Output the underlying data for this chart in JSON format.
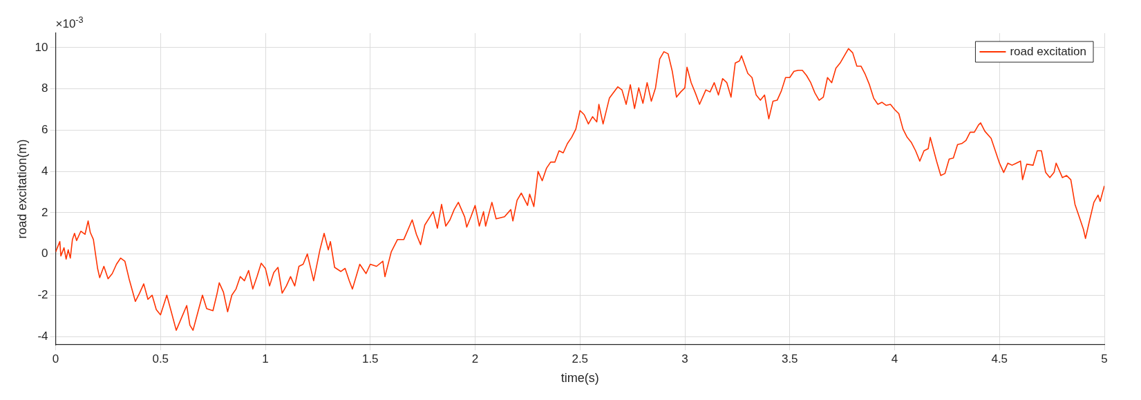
{
  "chart_data": {
    "type": "line",
    "xlabel": "time(s)",
    "ylabel": "road excitation(m)",
    "annotations": [
      "×10$^{-3}$"
    ],
    "xlim": [
      0,
      5
    ],
    "xticks": [
      0,
      0.5,
      1,
      1.5,
      2,
      2.5,
      3,
      3.5,
      4,
      4.5,
      5
    ],
    "ylim": [
      -4.4,
      10.7
    ],
    "yticks": [
      -4,
      -2,
      0,
      2,
      4,
      6,
      8,
      10
    ],
    "grid": true,
    "legend": "top right",
    "marker": "none",
    "line_style": "solid",
    "series": [
      {
        "name": "road excitation",
        "color": "#ff3300",
        "x": [
          0,
          0.01,
          0.02,
          0.025,
          0.04,
          0.05,
          0.06,
          0.07,
          0.08,
          0.09,
          0.1,
          0.12,
          0.14,
          0.155,
          0.165,
          0.18,
          0.2,
          0.21,
          0.23,
          0.25,
          0.27,
          0.29,
          0.31,
          0.33,
          0.35,
          0.38,
          0.4,
          0.42,
          0.44,
          0.46,
          0.48,
          0.5,
          0.53,
          0.55,
          0.575,
          0.6,
          0.625,
          0.64,
          0.655,
          0.68,
          0.7,
          0.72,
          0.75,
          0.77,
          0.78,
          0.8,
          0.82,
          0.84,
          0.86,
          0.88,
          0.9,
          0.92,
          0.94,
          0.96,
          0.98,
          1,
          1.02,
          1.04,
          1.06,
          1.08,
          1.1,
          1.12,
          1.14,
          1.16,
          1.18,
          1.2,
          1.23,
          1.26,
          1.28,
          1.3,
          1.31,
          1.33,
          1.36,
          1.38,
          1.4,
          1.415,
          1.45,
          1.48,
          1.5,
          1.53,
          1.56,
          1.57,
          1.6,
          1.63,
          1.66,
          1.7,
          1.72,
          1.74,
          1.76,
          1.8,
          1.82,
          1.84,
          1.86,
          1.88,
          1.9,
          1.92,
          1.95,
          1.96,
          1.98,
          2,
          2.02,
          2.04,
          2.05,
          2.08,
          2.1,
          2.14,
          2.17,
          2.18,
          2.2,
          2.22,
          2.25,
          2.26,
          2.28,
          2.3,
          2.32,
          2.34,
          2.36,
          2.38,
          2.4,
          2.42,
          2.44,
          2.46,
          2.48,
          2.5,
          2.52,
          2.54,
          2.56,
          2.58,
          2.59,
          2.61,
          2.64,
          2.68,
          2.7,
          2.72,
          2.74,
          2.76,
          2.78,
          2.8,
          2.82,
          2.84,
          2.86,
          2.88,
          2.9,
          2.92,
          2.94,
          2.96,
          2.98,
          3,
          3.01,
          3.03,
          3.05,
          3.07,
          3.1,
          3.12,
          3.14,
          3.16,
          3.18,
          3.2,
          3.22,
          3.24,
          3.26,
          3.27,
          3.3,
          3.32,
          3.34,
          3.36,
          3.38,
          3.4,
          3.42,
          3.44,
          3.46,
          3.48,
          3.5,
          3.52,
          3.54,
          3.56,
          3.58,
          3.6,
          3.62,
          3.64,
          3.66,
          3.68,
          3.7,
          3.72,
          3.74,
          3.76,
          3.78,
          3.8,
          3.82,
          3.84,
          3.86,
          3.88,
          3.9,
          3.92,
          3.94,
          3.96,
          3.98,
          4,
          4.02,
          4.04,
          4.06,
          4.08,
          4.1,
          4.12,
          4.14,
          4.16,
          4.17,
          4.2,
          4.22,
          4.24,
          4.26,
          4.28,
          4.3,
          4.32,
          4.34,
          4.36,
          4.38,
          4.4,
          4.41,
          4.43,
          4.46,
          4.48,
          4.5,
          4.52,
          4.54,
          4.56,
          4.58,
          4.6,
          4.61,
          4.63,
          4.66,
          4.68,
          4.7,
          4.72,
          4.74,
          4.76,
          4.77,
          4.8,
          4.82,
          4.84,
          4.86,
          4.88,
          4.9,
          4.91,
          4.93,
          4.95,
          4.97,
          4.98,
          5
        ],
        "values": [
          0.1,
          0.35,
          0.6,
          -0.1,
          0.3,
          -0.25,
          0.2,
          -0.2,
          0.7,
          1.0,
          0.65,
          1.1,
          0.95,
          1.6,
          1.05,
          0.7,
          -0.7,
          -1.15,
          -0.6,
          -1.2,
          -0.95,
          -0.5,
          -0.2,
          -0.35,
          -1.2,
          -2.3,
          -1.9,
          -1.45,
          -2.2,
          -2.0,
          -2.7,
          -2.95,
          -2.0,
          -2.75,
          -3.7,
          -3.1,
          -2.5,
          -3.45,
          -3.7,
          -2.75,
          -2.0,
          -2.65,
          -2.75,
          -1.9,
          -1.4,
          -1.85,
          -2.8,
          -2.0,
          -1.7,
          -1.1,
          -1.3,
          -0.8,
          -1.7,
          -1.1,
          -0.45,
          -0.7,
          -1.55,
          -0.9,
          -0.65,
          -1.9,
          -1.55,
          -1.1,
          -1.55,
          -0.6,
          -0.5,
          0,
          -1.3,
          0.2,
          1.0,
          0.2,
          0.6,
          -0.65,
          -0.85,
          -0.7,
          -1.3,
          -1.7,
          -0.5,
          -0.95,
          -0.5,
          -0.6,
          -0.35,
          -1.1,
          0.1,
          0.7,
          0.7,
          1.65,
          0.95,
          0.45,
          1.4,
          2.05,
          1.25,
          2.4,
          1.35,
          1.65,
          2.15,
          2.5,
          1.8,
          1.3,
          1.8,
          2.35,
          1.35,
          2.05,
          1.35,
          2.5,
          1.7,
          1.8,
          2.15,
          1.6,
          2.6,
          2.95,
          2.35,
          2.9,
          2.3,
          4.0,
          3.55,
          4.15,
          4.45,
          4.45,
          5.0,
          4.9,
          5.35,
          5.65,
          6.05,
          6.95,
          6.75,
          6.3,
          6.65,
          6.4,
          7.25,
          6.3,
          7.55,
          8.1,
          7.95,
          7.25,
          8.2,
          7.05,
          8.05,
          7.3,
          8.3,
          7.4,
          8.05,
          9.45,
          9.8,
          9.7,
          8.85,
          7.6,
          7.85,
          8.05,
          9.05,
          8.3,
          7.8,
          7.25,
          7.95,
          7.85,
          8.3,
          7.7,
          8.5,
          8.3,
          7.6,
          9.25,
          9.35,
          9.6,
          8.75,
          8.55,
          7.7,
          7.45,
          7.7,
          6.55,
          7.4,
          7.45,
          7.9,
          8.55,
          8.55,
          8.85,
          8.9,
          8.9,
          8.65,
          8.3,
          7.8,
          7.45,
          7.6,
          8.55,
          8.3,
          9.0,
          9.25,
          9.6,
          9.95,
          9.75,
          9.1,
          9.1,
          8.7,
          8.2,
          7.55,
          7.25,
          7.35,
          7.2,
          7.25,
          7.0,
          6.8,
          6.05,
          5.65,
          5.4,
          5.0,
          4.5,
          5.0,
          5.1,
          5.65,
          4.5,
          3.8,
          3.9,
          4.6,
          4.65,
          5.3,
          5.35,
          5.5,
          5.9,
          5.9,
          6.25,
          6.35,
          5.95,
          5.6,
          5.0,
          4.4,
          3.95,
          4.4,
          4.3,
          4.4,
          4.5,
          3.6,
          4.35,
          4.3,
          5.0,
          5.0,
          3.95,
          3.7,
          3.95,
          4.4,
          3.7,
          3.8,
          3.6,
          2.4,
          1.8,
          1.2,
          0.75,
          1.65,
          2.5,
          2.85,
          2.55,
          3.3
        ]
      }
    ]
  }
}
